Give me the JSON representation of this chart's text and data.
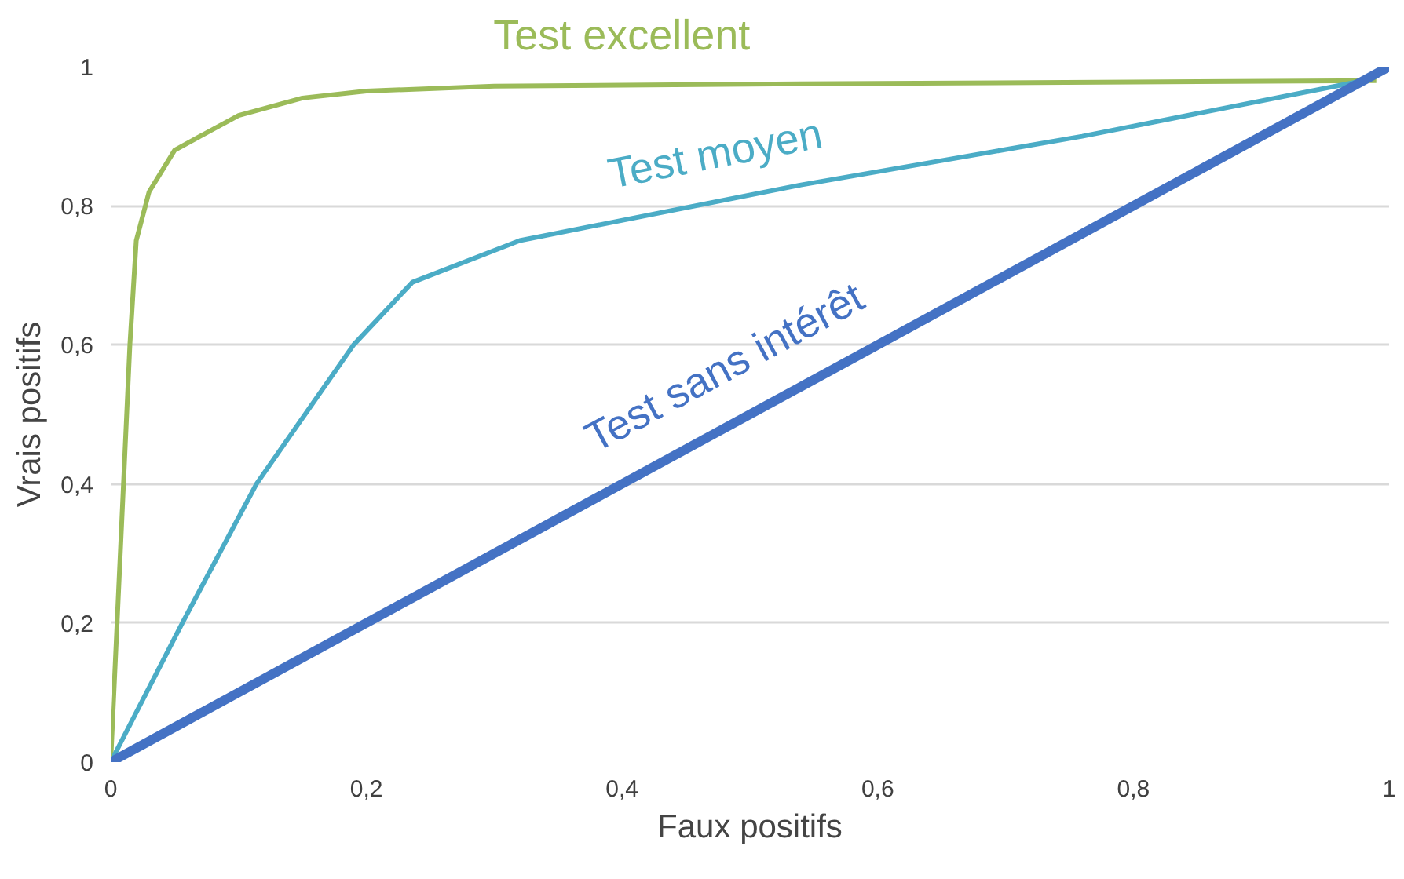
{
  "chart_data": {
    "type": "line",
    "xlabel": "Faux positifs",
    "ylabel": "Vrais positifs",
    "xlim": [
      0,
      1
    ],
    "ylim": [
      0,
      1
    ],
    "xticks": [
      0,
      {
        "value": 0.2,
        "label": "0,2"
      },
      {
        "value": 0.4,
        "label": "0,4"
      },
      {
        "value": 0.6,
        "label": "0,6"
      },
      {
        "value": 0.8,
        "label": "0,8"
      },
      1
    ],
    "yticks": [
      0,
      {
        "value": 0.2,
        "label": "0,2"
      },
      {
        "value": 0.4,
        "label": "0,4"
      },
      {
        "value": 0.6,
        "label": "0,6"
      },
      {
        "value": 0.8,
        "label": "0,8"
      },
      1
    ],
    "grid": "y",
    "marker": "none",
    "line_style": "solid",
    "series": [
      {
        "name": "Test excellent",
        "color": "#9bbb59",
        "x": [
          0,
          0.005,
          0.01,
          0.015,
          0.02,
          0.03,
          0.05,
          0.1,
          0.15,
          0.2,
          0.3,
          0.5,
          0.8,
          0.99
        ],
        "values": [
          0,
          0.2,
          0.4,
          0.6,
          0.75,
          0.82,
          0.88,
          0.93,
          0.955,
          0.965,
          0.972,
          0.975,
          0.978,
          0.98
        ]
      },
      {
        "name": "Test moyen",
        "color": "#4bacc6",
        "x": [
          0,
          0.056,
          0.114,
          0.19,
          0.236,
          0.32,
          0.54,
          0.76,
          0.98
        ],
        "values": [
          0,
          0.2,
          0.4,
          0.6,
          0.69,
          0.75,
          0.83,
          0.9,
          0.98
        ]
      },
      {
        "name": "Test sans intérêt",
        "color": "#4472c4",
        "x": [
          0,
          1
        ],
        "values": [
          0,
          1
        ]
      }
    ]
  }
}
